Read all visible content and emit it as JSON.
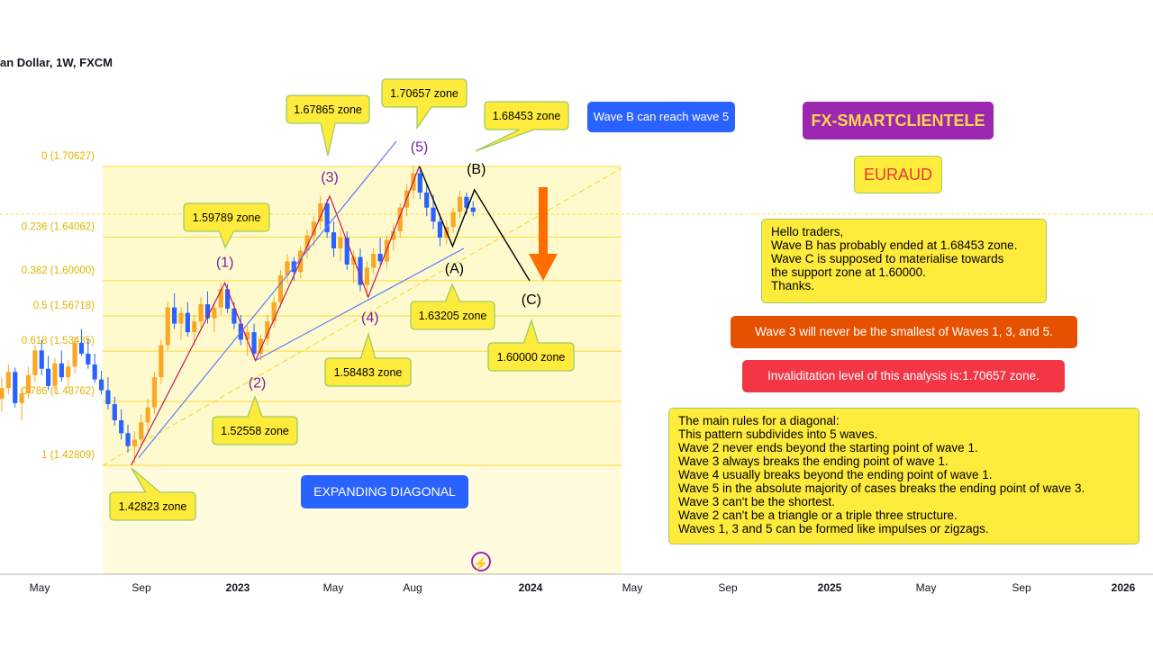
{
  "symbol_header": "an Dollar, 1W, FXCM",
  "brand": {
    "label": "FX-SMARTCLIENTELE",
    "bg": "#9c27b0",
    "fg": "#ffd54f"
  },
  "pair": {
    "label": "EURAUD"
  },
  "notes": {
    "wave_b_reach": "Wave B can reach wave 5",
    "expanding_diagonal": "EXPANDING DIAGONAL",
    "hello": "Hello traders,\nWave B has probably ended at 1.68453 zone.\nWave C is supposed to materialise towards\nthe support zone at 1.60000.\nThanks.",
    "wave3_rule": "Wave 3 will never be the smallest of Waves 1, 3, and 5.",
    "invalidation": "Invaliditation level of this analysis is:1.70657 zone.",
    "diagonal_rules": "The main rules for a diagonal:\nThis pattern subdivides into 5 waves.\nWave 2 never ends beyond the starting point of wave 1.\nWave 3 always breaks the ending point of wave 1.\nWave 4 usually breaks beyond the ending point of wave 1.\nWave 5 in the absolute majority of cases breaks the ending point of wave 3.\nWave 3 can't be the shortest.\nWave 2 can't be a triangle or a triple three structure.\nWaves 1, 3 and 5 can be formed like impulses or zigzags."
  },
  "colors": {
    "up": "#f9a825",
    "down": "#2962ff",
    "fib_zone": "#fff9c4",
    "fib_line": "#fdd835",
    "wave_label": "#7b1fa2",
    "arrow": "#ff6d00"
  },
  "chart_data": {
    "type": "candlestick",
    "title": "",
    "xlabel": "",
    "ylabel": "",
    "x_ticks": [
      "May",
      "Sep",
      "2023",
      "May",
      "Aug",
      "2024",
      "May",
      "Sep",
      "2025",
      "May",
      "Sep",
      "2026"
    ],
    "fib_levels": [
      {
        "label": "0 (1.70627)",
        "ratio": 0,
        "price": 1.70627
      },
      {
        "label": "0.236 (1.64062)",
        "ratio": 0.236,
        "price": 1.64062
      },
      {
        "label": "0.382 (1.60000)",
        "ratio": 0.382,
        "price": 1.6
      },
      {
        "label": "0.5 (1.56718)",
        "ratio": 0.5,
        "price": 1.56718
      },
      {
        "label": "0.618 (1.53435)",
        "ratio": 0.618,
        "price": 1.53435
      },
      {
        "label": "0.786 (1.48762)",
        "ratio": 0.786,
        "price": 1.48762
      },
      {
        "label": "1 (1.42809)",
        "ratio": 1,
        "price": 1.42809
      }
    ],
    "waves": [
      {
        "label": "(1)",
        "price": 1.59789,
        "zone": "1.59789 zone"
      },
      {
        "label": "(2)",
        "price": 1.52558,
        "zone": "1.52558 zone"
      },
      {
        "label": "(3)",
        "price": 1.67865,
        "zone": "1.67865 zone"
      },
      {
        "label": "(4)",
        "price": 1.58483,
        "zone": "1.58483 zone"
      },
      {
        "label": "(5)",
        "price": 1.70657,
        "zone": "1.70657 zone"
      },
      {
        "label": "(A)",
        "price": 1.63205,
        "zone": "1.63205 zone"
      },
      {
        "label": "(B)",
        "price": 1.68453,
        "zone": "1.68453 zone"
      },
      {
        "label": "(C)",
        "price": 1.6,
        "zone": "1.60000 zone"
      }
    ],
    "start_zone": {
      "price": 1.42823,
      "zone": "1.42823 zone"
    },
    "candles": [
      [
        1.49,
        1.51,
        1.478,
        1.5
      ],
      [
        1.5,
        1.522,
        1.494,
        1.515
      ],
      [
        1.515,
        1.519,
        1.482,
        1.486
      ],
      [
        1.486,
        1.5,
        1.47,
        1.495
      ],
      [
        1.495,
        1.52,
        1.49,
        1.512
      ],
      [
        1.512,
        1.54,
        1.506,
        1.535
      ],
      [
        1.535,
        1.545,
        1.512,
        1.518
      ],
      [
        1.518,
        1.53,
        1.498,
        1.502
      ],
      [
        1.502,
        1.528,
        1.495,
        1.523
      ],
      [
        1.523,
        1.535,
        1.506,
        1.51
      ],
      [
        1.51,
        1.526,
        1.5,
        1.52
      ],
      [
        1.52,
        1.548,
        1.514,
        1.542
      ],
      [
        1.542,
        1.555,
        1.53,
        1.532
      ],
      [
        1.532,
        1.546,
        1.518,
        1.522
      ],
      [
        1.522,
        1.532,
        1.505,
        1.508
      ],
      [
        1.508,
        1.516,
        1.494,
        1.498
      ],
      [
        1.498,
        1.51,
        1.48,
        1.485
      ],
      [
        1.485,
        1.492,
        1.465,
        1.47
      ],
      [
        1.47,
        1.48,
        1.452,
        1.458
      ],
      [
        1.458,
        1.466,
        1.44,
        1.446
      ],
      [
        1.446,
        1.46,
        1.43,
        1.452
      ],
      [
        1.452,
        1.475,
        1.446,
        1.468
      ],
      [
        1.468,
        1.49,
        1.46,
        1.482
      ],
      [
        1.482,
        1.515,
        1.476,
        1.51
      ],
      [
        1.51,
        1.545,
        1.504,
        1.54
      ],
      [
        1.54,
        1.58,
        1.535,
        1.575
      ],
      [
        1.575,
        1.588,
        1.555,
        1.56
      ],
      [
        1.56,
        1.575,
        1.545,
        1.57
      ],
      [
        1.57,
        1.58,
        1.548,
        1.552
      ],
      [
        1.552,
        1.568,
        1.54,
        1.562
      ],
      [
        1.562,
        1.585,
        1.556,
        1.578
      ],
      [
        1.578,
        1.59,
        1.56,
        1.565
      ],
      [
        1.565,
        1.58,
        1.552,
        1.575
      ],
      [
        1.575,
        1.598,
        1.568,
        1.592
      ],
      [
        1.592,
        1.597,
        1.57,
        1.574
      ],
      [
        1.574,
        1.58,
        1.555,
        1.56
      ],
      [
        1.56,
        1.568,
        1.54,
        1.545
      ],
      [
        1.545,
        1.558,
        1.53,
        1.552
      ],
      [
        1.552,
        1.56,
        1.528,
        1.532
      ],
      [
        1.532,
        1.55,
        1.526,
        1.546
      ],
      [
        1.546,
        1.568,
        1.54,
        1.562
      ],
      [
        1.562,
        1.585,
        1.556,
        1.58
      ],
      [
        1.58,
        1.61,
        1.575,
        1.605
      ],
      [
        1.605,
        1.625,
        1.598,
        1.618
      ],
      [
        1.618,
        1.622,
        1.6,
        1.608
      ],
      [
        1.608,
        1.632,
        1.602,
        1.628
      ],
      [
        1.628,
        1.648,
        1.62,
        1.642
      ],
      [
        1.642,
        1.66,
        1.632,
        1.655
      ],
      [
        1.655,
        1.679,
        1.648,
        1.672
      ],
      [
        1.672,
        1.676,
        1.64,
        1.645
      ],
      [
        1.645,
        1.655,
        1.622,
        1.63
      ],
      [
        1.63,
        1.648,
        1.618,
        1.64
      ],
      [
        1.64,
        1.646,
        1.61,
        1.615
      ],
      [
        1.615,
        1.628,
        1.598,
        1.622
      ],
      [
        1.622,
        1.63,
        1.59,
        1.596
      ],
      [
        1.596,
        1.618,
        1.585,
        1.612
      ],
      [
        1.612,
        1.63,
        1.606,
        1.625
      ],
      [
        1.625,
        1.64,
        1.615,
        1.618
      ],
      [
        1.618,
        1.642,
        1.612,
        1.638
      ],
      [
        1.638,
        1.652,
        1.628,
        1.646
      ],
      [
        1.646,
        1.672,
        1.64,
        1.668
      ],
      [
        1.668,
        1.69,
        1.66,
        1.684
      ],
      [
        1.684,
        1.707,
        1.676,
        1.7
      ],
      [
        1.7,
        1.703,
        1.676,
        1.682
      ],
      [
        1.682,
        1.69,
        1.66,
        1.668
      ],
      [
        1.668,
        1.68,
        1.648,
        1.655
      ],
      [
        1.655,
        1.662,
        1.632,
        1.64
      ],
      [
        1.64,
        1.656,
        1.634,
        1.65
      ],
      [
        1.65,
        1.668,
        1.644,
        1.664
      ],
      [
        1.664,
        1.684,
        1.658,
        1.678
      ],
      [
        1.678,
        1.682,
        1.662,
        1.668
      ],
      [
        1.668,
        1.674,
        1.66,
        1.664
      ]
    ]
  }
}
